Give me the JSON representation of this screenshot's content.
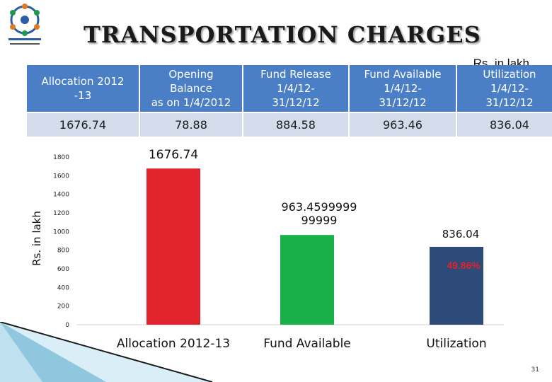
{
  "slide": {
    "title": "TRANSPORTATION CHARGES",
    "unit_label": "Rs. in lakh",
    "page_number": "31"
  },
  "table": {
    "headers": [
      [
        "Allocation  2012",
        "-13"
      ],
      [
        "Opening",
        "Balance",
        "as on 1/4/2012"
      ],
      [
        "Fund Release",
        "1/4/12-",
        "31/12/12"
      ],
      [
        "Fund Available",
        "1/4/12-",
        "31/12/12"
      ],
      [
        "Utilization",
        "1/4/12-",
        "31/12/12"
      ]
    ],
    "row": [
      "1676.74",
      "78.88",
      "884.58",
      "963.46",
      "836.04"
    ]
  },
  "chart_data": {
    "type": "bar",
    "categories": [
      "Allocation  2012-13",
      "Fund Available",
      "Utilization"
    ],
    "values": [
      1676.74,
      963.4599999,
      836.04
    ],
    "data_labels": [
      "1676.74",
      "963.4599999 99999",
      "836.04"
    ],
    "annotation": "49.86%",
    "ylabel": "Rs. in lakh",
    "xlabel": "",
    "ylim": [
      0,
      1800
    ],
    "yticks": [
      0,
      200,
      400,
      600,
      800,
      1000,
      1200,
      1400,
      1600,
      1800
    ],
    "colors": [
      "#e0232c",
      "#19b04a",
      "#2e4a78"
    ],
    "annotation_color": "#e0232c",
    "grid": false
  }
}
